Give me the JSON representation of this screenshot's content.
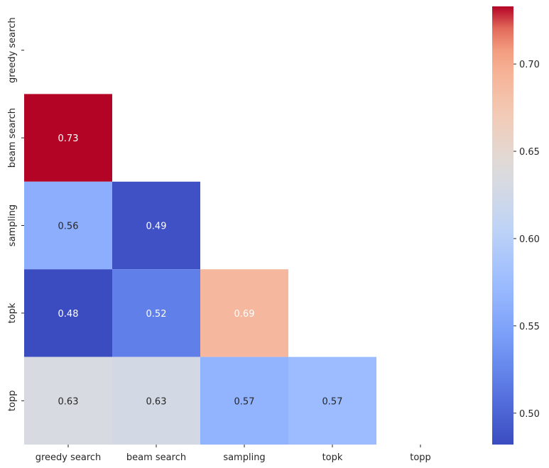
{
  "chart_data": {
    "type": "heatmap",
    "mask": "upper-triangle-including-diagonal",
    "row_labels": [
      "greedy search",
      "beam search",
      "sampling",
      "topk",
      "topp"
    ],
    "col_labels": [
      "greedy search",
      "beam search",
      "sampling",
      "topk",
      "topp"
    ],
    "cells": [
      {
        "row": 1,
        "col": 0,
        "value": 0.733,
        "label": "0.73"
      },
      {
        "row": 2,
        "col": 0,
        "value": 0.56,
        "label": "0.56"
      },
      {
        "row": 2,
        "col": 1,
        "value": 0.486,
        "label": "0.49"
      },
      {
        "row": 3,
        "col": 0,
        "value": 0.482,
        "label": "0.48"
      },
      {
        "row": 3,
        "col": 1,
        "value": 0.52,
        "label": "0.52"
      },
      {
        "row": 3,
        "col": 2,
        "value": 0.69,
        "label": "0.69"
      },
      {
        "row": 4,
        "col": 0,
        "value": 0.632,
        "label": "0.63"
      },
      {
        "row": 4,
        "col": 1,
        "value": 0.627,
        "label": "0.63"
      },
      {
        "row": 4,
        "col": 2,
        "value": 0.565,
        "label": "0.57"
      },
      {
        "row": 4,
        "col": 3,
        "value": 0.574,
        "label": "0.57"
      }
    ],
    "colormap": "coolwarm",
    "colorbar": {
      "vmin": 0.482,
      "vmax": 0.733,
      "ticks": [
        0.5,
        0.55,
        0.6,
        0.65,
        0.7
      ],
      "tick_labels": [
        "0.50",
        "0.55",
        "0.60",
        "0.65",
        "0.70"
      ]
    },
    "title": "",
    "xlabel": "",
    "ylabel": ""
  }
}
